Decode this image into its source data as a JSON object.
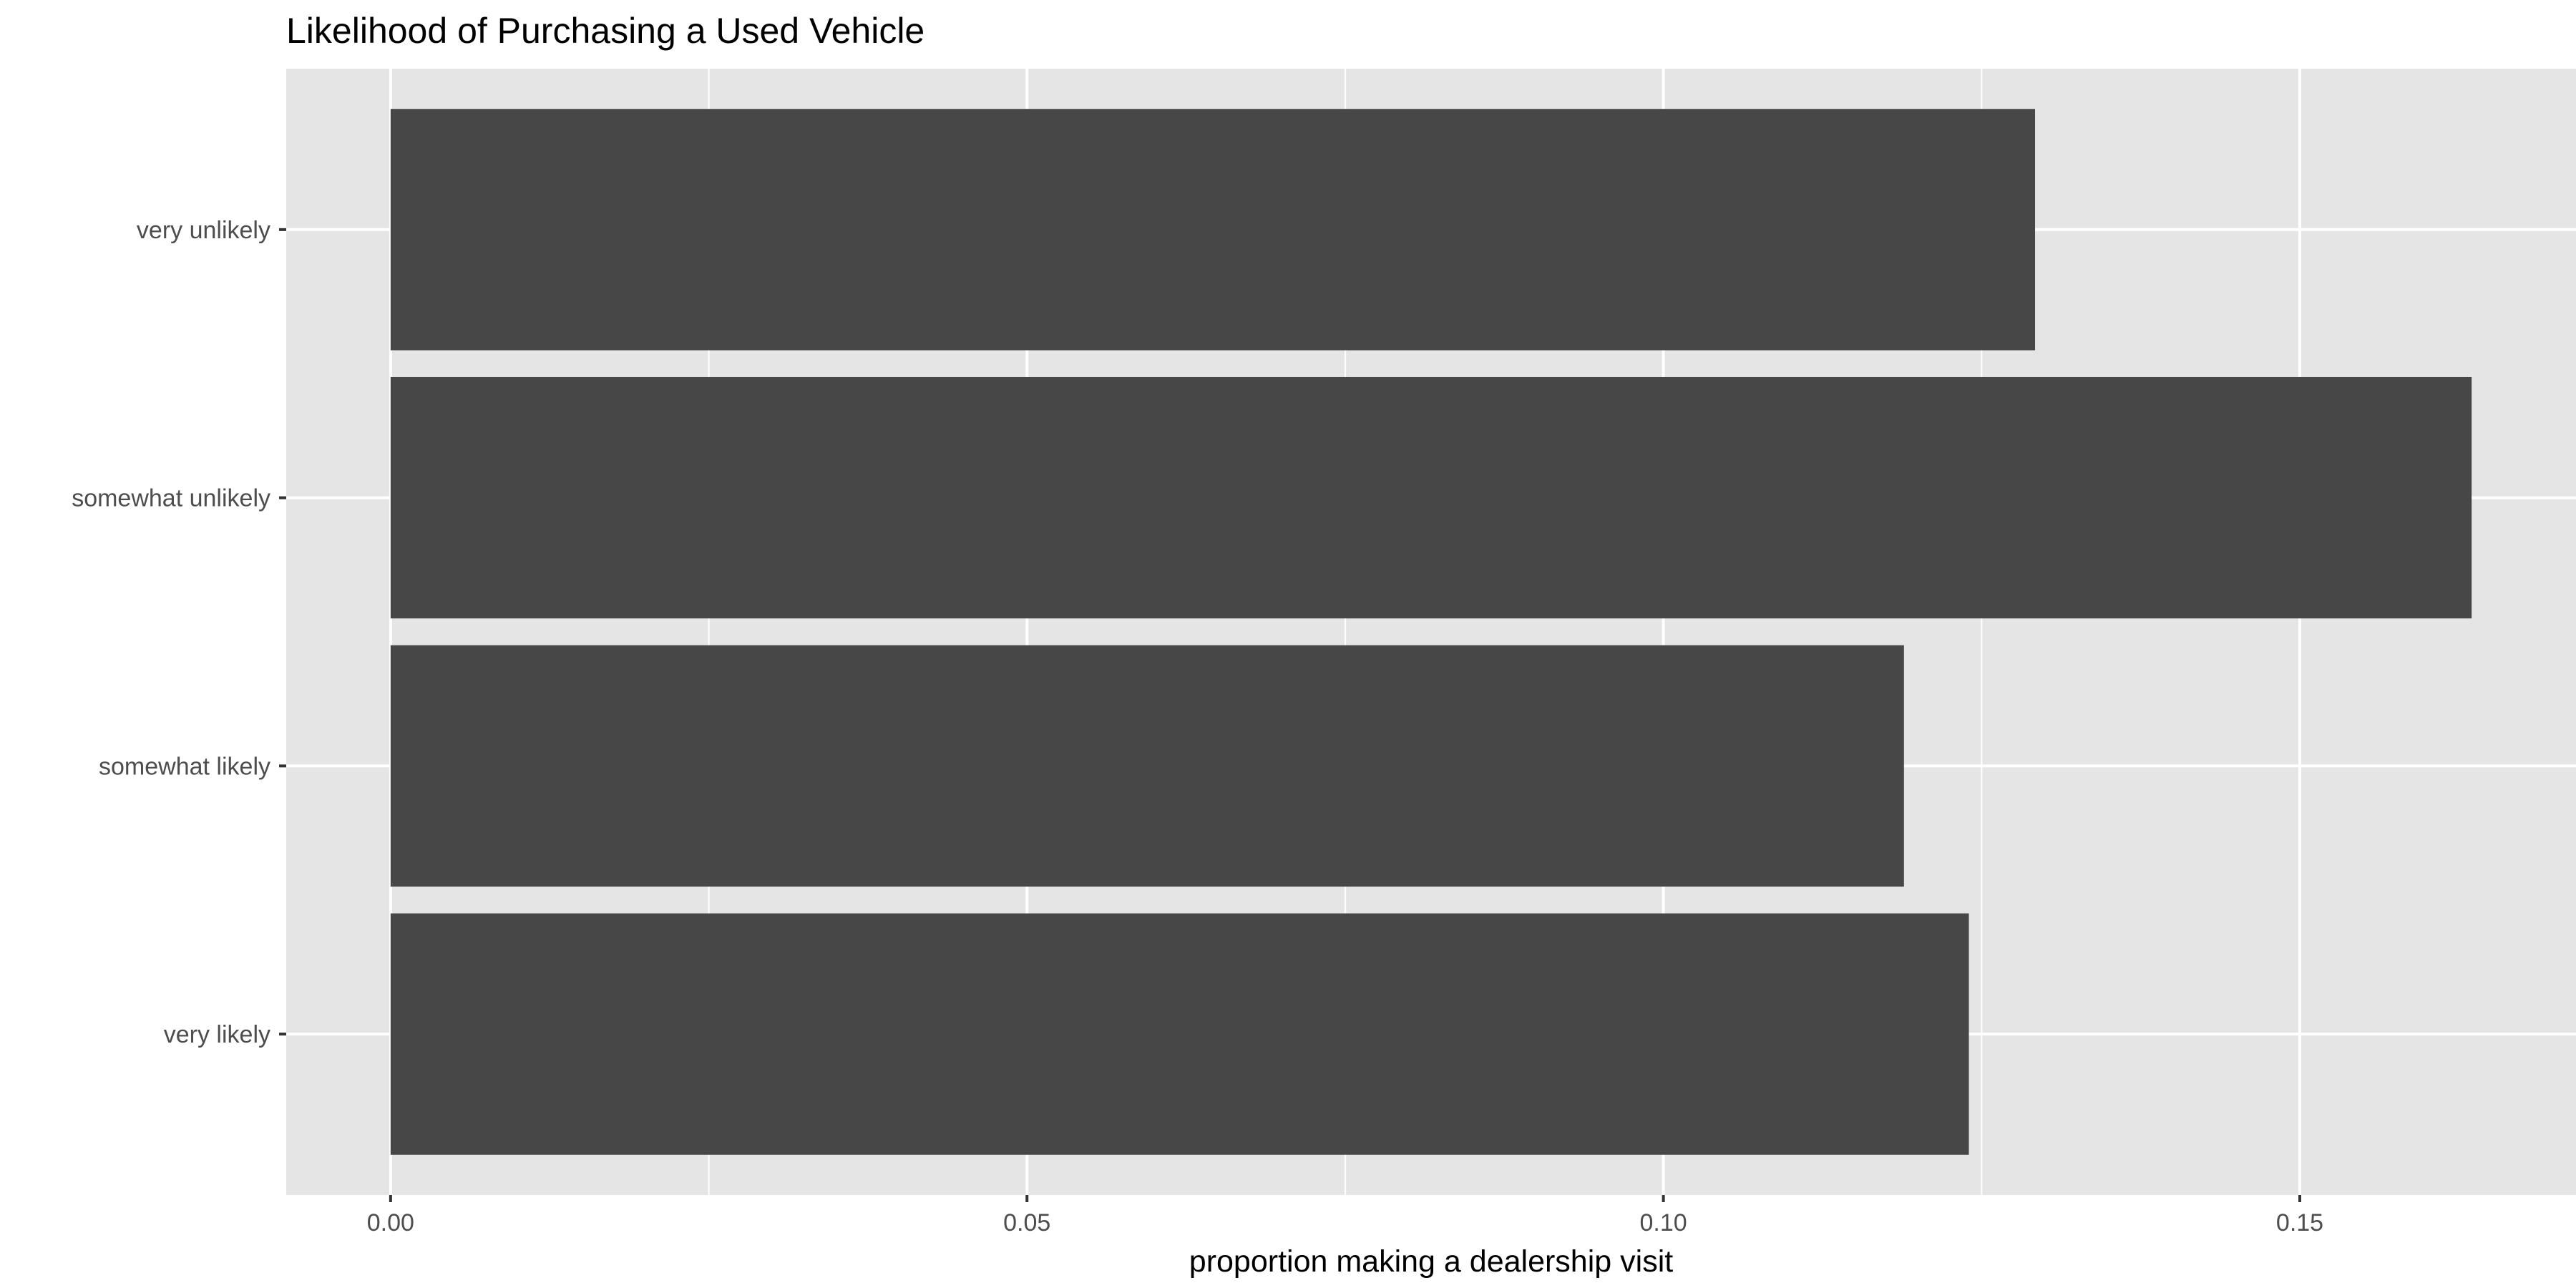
{
  "chart_data": {
    "type": "bar",
    "orientation": "horizontal",
    "title": "Likelihood of Purchasing a Used Vehicle",
    "xlabel": "proportion making a dealership visit",
    "ylabel": "",
    "categories": [
      "very unlikely",
      "somewhat unlikely",
      "somewhat likely",
      "very likely"
    ],
    "values": [
      0.1292,
      0.1635,
      0.1189,
      0.124
    ],
    "xlim": [
      -0.0082,
      0.1717
    ],
    "x_ticks": [
      "0.00",
      "0.05",
      "0.10",
      "0.15"
    ],
    "x_tick_values": [
      0,
      0.05,
      0.1,
      0.15
    ],
    "x_minor_ticks": [
      0.025,
      0.075,
      0.125
    ],
    "grid": true,
    "legend": "none",
    "colors": {
      "bar": "#474747",
      "panel_background": "#e5e5e5",
      "gridline": "#ffffff",
      "tick_text": "#4d4d4d",
      "tick_mark": "#333333"
    }
  }
}
